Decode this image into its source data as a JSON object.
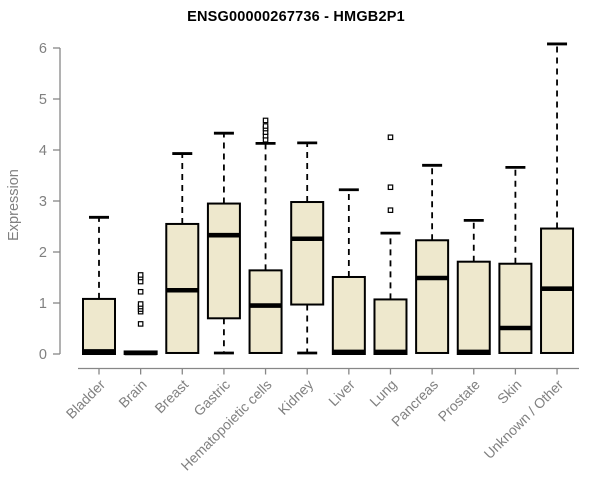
{
  "page": {
    "background": "#ffffff"
  },
  "chart_data": {
    "type": "boxplot",
    "title": "ENSG00000267736 - HMGB2P1",
    "ylabel": "Expression",
    "xlabel": "",
    "ylim": [
      0,
      6
    ],
    "yticks": [
      0,
      1,
      2,
      3,
      4,
      5,
      6
    ],
    "grid": false,
    "legend": "none",
    "box_fill": "#eee8cd",
    "box_stroke": "#000000",
    "median_color": "#000000",
    "whisker_color": "#000000",
    "axis_color": "#878787",
    "label_color": "#808080",
    "categories": [
      "Bladder",
      "Brain",
      "Breast",
      "Gastric",
      "Hematopoietic cells",
      "Kidney",
      "Liver",
      "Lung",
      "Pancreas",
      "Prostate",
      "Skin",
      "Unknown / Other"
    ],
    "series": [
      {
        "label": "Bladder",
        "whislo": 0,
        "q1": 0,
        "med": 0.05,
        "q3": 1.08,
        "whishi": 2.68,
        "outliers": []
      },
      {
        "label": "Brain",
        "whislo": 0,
        "q1": 0,
        "med": 0.02,
        "q3": 0.05,
        "whishi": 0.05,
        "outliers": [
          0.59,
          0.83,
          0.88,
          0.93,
          0.98,
          1.22,
          1.42,
          1.5,
          1.55
        ]
      },
      {
        "label": "Breast",
        "whislo": 0.02,
        "q1": 0.02,
        "med": 1.25,
        "q3": 2.55,
        "whishi": 3.93,
        "outliers": []
      },
      {
        "label": "Gastric",
        "whislo": 0.02,
        "q1": 0.7,
        "med": 2.33,
        "q3": 2.95,
        "whishi": 4.33,
        "outliers": []
      },
      {
        "label": "Hematopoietic cells",
        "whislo": 0.02,
        "q1": 0.02,
        "med": 0.95,
        "q3": 1.64,
        "whishi": 4.13,
        "outliers": [
          4.2,
          4.28,
          4.35,
          4.42,
          4.47,
          4.58
        ]
      },
      {
        "label": "Kidney",
        "whislo": 0.02,
        "q1": 0.97,
        "med": 2.26,
        "q3": 2.98,
        "whishi": 4.14,
        "outliers": []
      },
      {
        "label": "Liver",
        "whislo": 0,
        "q1": 0,
        "med": 0.04,
        "q3": 1.51,
        "whishi": 3.22,
        "outliers": []
      },
      {
        "label": "Lung",
        "whislo": 0,
        "q1": 0,
        "med": 0.04,
        "q3": 1.07,
        "whishi": 2.37,
        "outliers": [
          2.82,
          3.27,
          4.25
        ]
      },
      {
        "label": "Pancreas",
        "whislo": 0.02,
        "q1": 0.02,
        "med": 1.49,
        "q3": 2.23,
        "whishi": 3.7,
        "outliers": []
      },
      {
        "label": "Prostate",
        "whislo": 0,
        "q1": 0,
        "med": 0.04,
        "q3": 1.81,
        "whishi": 2.62,
        "outliers": []
      },
      {
        "label": "Skin",
        "whislo": 0.02,
        "q1": 0.02,
        "med": 0.51,
        "q3": 1.77,
        "whishi": 3.66,
        "outliers": []
      },
      {
        "label": "Unknown / Other",
        "whislo": 0.02,
        "q1": 0.02,
        "med": 1.28,
        "q3": 2.46,
        "whishi": 6.08,
        "outliers": []
      }
    ]
  }
}
